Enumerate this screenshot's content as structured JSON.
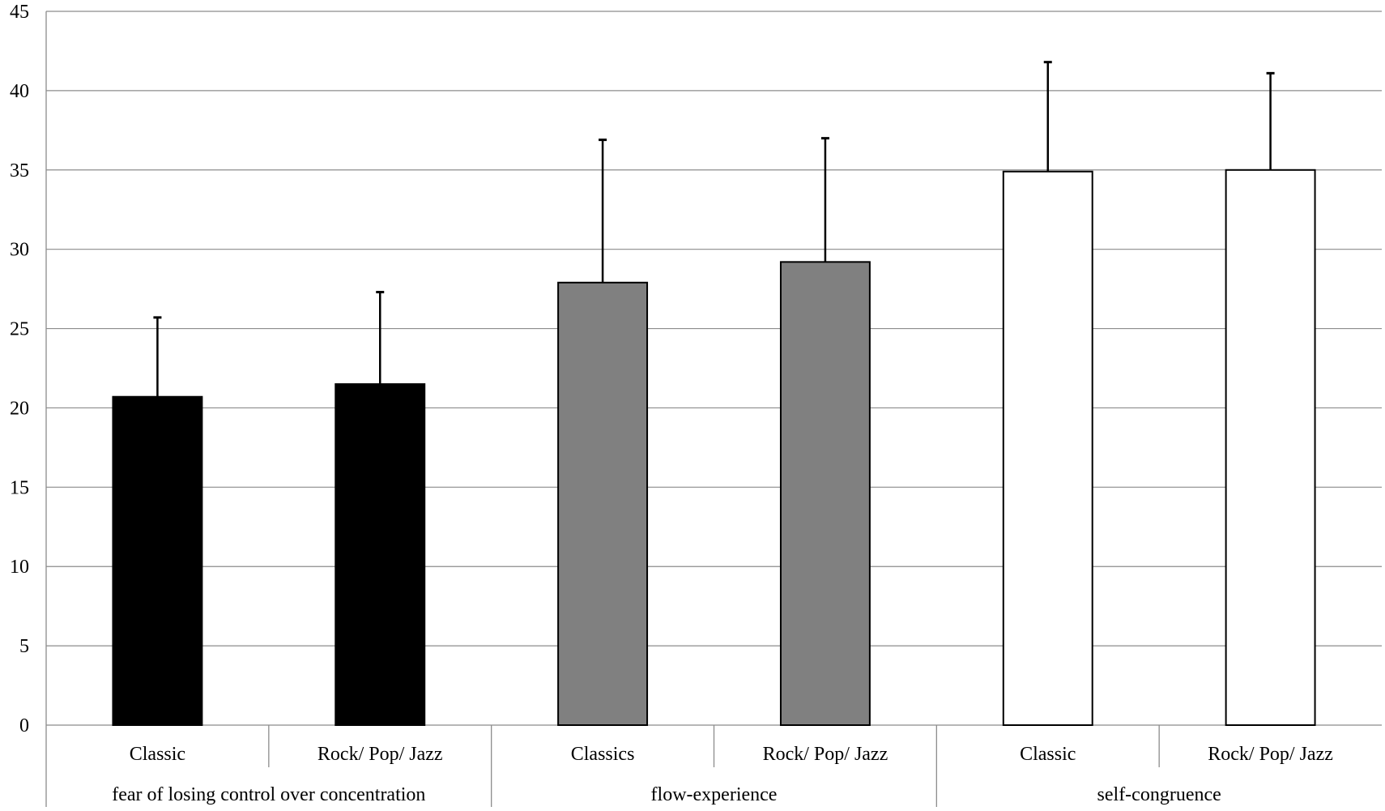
{
  "chart_data": {
    "type": "bar",
    "ylim": [
      0,
      45
    ],
    "yticks": [
      0,
      5,
      10,
      15,
      20,
      25,
      30,
      35,
      40,
      45
    ],
    "grid": true,
    "groups": [
      {
        "label": "fear of losing control over concentration",
        "color": "#000000",
        "bars": [
          {
            "label": "Classic",
            "value": 20.7,
            "error": 5.0
          },
          {
            "label": "Rock/ Pop/ Jazz",
            "value": 21.5,
            "error": 5.8
          }
        ]
      },
      {
        "label": "flow-experience",
        "color": "#808080",
        "bars": [
          {
            "label": "Classics",
            "value": 27.9,
            "error": 9.0
          },
          {
            "label": "Rock/ Pop/ Jazz",
            "value": 29.2,
            "error": 7.8
          }
        ]
      },
      {
        "label": "self-congruence",
        "color": "#ffffff",
        "bars": [
          {
            "label": "Classic",
            "value": 34.9,
            "error": 6.9
          },
          {
            "label": "Rock/ Pop/ Jazz",
            "value": 35.0,
            "error": 6.1
          }
        ]
      }
    ]
  }
}
